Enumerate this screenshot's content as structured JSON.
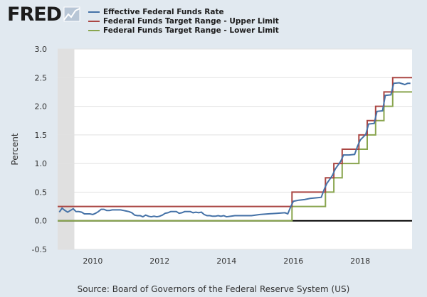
{
  "brand": {
    "logo_text": "FRED"
  },
  "source": "Source: Board of Governors of the Federal Reserve System (US)",
  "chart_data": {
    "type": "line",
    "title": "",
    "xlabel": "",
    "ylabel": "Percent",
    "xlim": [
      2008.95,
      2019.55
    ],
    "ylim": [
      -0.5,
      3.0
    ],
    "yticks": [
      "-0.5",
      "0.0",
      "0.5",
      "1.0",
      "1.5",
      "2.0",
      "2.5",
      "3.0"
    ],
    "xticks": [
      "2010",
      "2012",
      "2014",
      "2016",
      "2018"
    ],
    "recession_shading": [
      2008.95,
      2009.45
    ],
    "zero_line": 0,
    "grid": "horizontal",
    "legend_position": "top",
    "series": [
      {
        "name": "Effective Federal Funds Rate",
        "color": "#4572a7",
        "shape": "line",
        "x": [
          2009.0,
          2009.083,
          2009.167,
          2009.25,
          2009.333,
          2009.417,
          2009.5,
          2009.583,
          2009.667,
          2009.75,
          2009.833,
          2009.917,
          2010.0,
          2010.083,
          2010.167,
          2010.25,
          2010.333,
          2010.417,
          2010.5,
          2010.583,
          2010.667,
          2010.75,
          2010.833,
          2010.917,
          2011.0,
          2011.083,
          2011.167,
          2011.25,
          2011.333,
          2011.417,
          2011.5,
          2011.583,
          2011.667,
          2011.75,
          2011.833,
          2011.917,
          2012.0,
          2012.083,
          2012.167,
          2012.25,
          2012.333,
          2012.417,
          2012.5,
          2012.583,
          2012.667,
          2012.75,
          2012.833,
          2012.917,
          2013.0,
          2013.083,
          2013.167,
          2013.25,
          2013.333,
          2013.417,
          2013.5,
          2013.583,
          2013.667,
          2013.75,
          2013.833,
          2013.917,
          2014.0,
          2014.25,
          2014.5,
          2014.75,
          2015.0,
          2015.25,
          2015.5,
          2015.75,
          2015.833,
          2015.917,
          2016.0,
          2016.167,
          2016.333,
          2016.5,
          2016.667,
          2016.833,
          2016.917,
          2017.0,
          2017.167,
          2017.25,
          2017.417,
          2017.5,
          2017.667,
          2017.833,
          2017.917,
          2018.0,
          2018.167,
          2018.25,
          2018.417,
          2018.5,
          2018.667,
          2018.75,
          2018.917,
          2019.0,
          2019.167,
          2019.333,
          2019.417,
          2019.5
        ],
        "values": [
          0.15,
          0.22,
          0.18,
          0.15,
          0.18,
          0.21,
          0.16,
          0.16,
          0.15,
          0.12,
          0.12,
          0.12,
          0.11,
          0.13,
          0.16,
          0.2,
          0.2,
          0.18,
          0.18,
          0.19,
          0.19,
          0.19,
          0.19,
          0.18,
          0.17,
          0.16,
          0.14,
          0.1,
          0.09,
          0.09,
          0.07,
          0.1,
          0.08,
          0.07,
          0.08,
          0.07,
          0.08,
          0.1,
          0.13,
          0.14,
          0.16,
          0.16,
          0.16,
          0.13,
          0.14,
          0.16,
          0.16,
          0.16,
          0.14,
          0.15,
          0.14,
          0.15,
          0.11,
          0.09,
          0.09,
          0.08,
          0.08,
          0.09,
          0.08,
          0.09,
          0.07,
          0.09,
          0.09,
          0.09,
          0.11,
          0.12,
          0.13,
          0.14,
          0.12,
          0.24,
          0.34,
          0.36,
          0.37,
          0.39,
          0.4,
          0.41,
          0.54,
          0.65,
          0.79,
          0.9,
          1.04,
          1.15,
          1.15,
          1.16,
          1.3,
          1.41,
          1.51,
          1.69,
          1.7,
          1.91,
          1.92,
          2.19,
          2.2,
          2.4,
          2.41,
          2.38,
          2.4,
          2.4
        ]
      },
      {
        "name": "Federal Funds Target Range - Upper Limit",
        "color": "#aa4643",
        "shape": "step",
        "x": [
          2008.95,
          2015.96,
          2016.96,
          2017.21,
          2017.46,
          2017.96,
          2018.21,
          2018.46,
          2018.71,
          2018.97,
          2019.55
        ],
        "values": [
          0.25,
          0.5,
          0.75,
          1.0,
          1.25,
          1.5,
          1.75,
          2.0,
          2.25,
          2.5,
          2.5
        ]
      },
      {
        "name": "Federal Funds Target Range - Lower Limit",
        "color": "#89a54e",
        "shape": "step",
        "x": [
          2008.95,
          2015.96,
          2016.96,
          2017.21,
          2017.46,
          2017.96,
          2018.21,
          2018.46,
          2018.71,
          2018.97,
          2019.55
        ],
        "values": [
          0.0,
          0.25,
          0.5,
          0.75,
          1.0,
          1.25,
          1.5,
          1.75,
          2.0,
          2.25,
          2.25
        ]
      }
    ]
  }
}
